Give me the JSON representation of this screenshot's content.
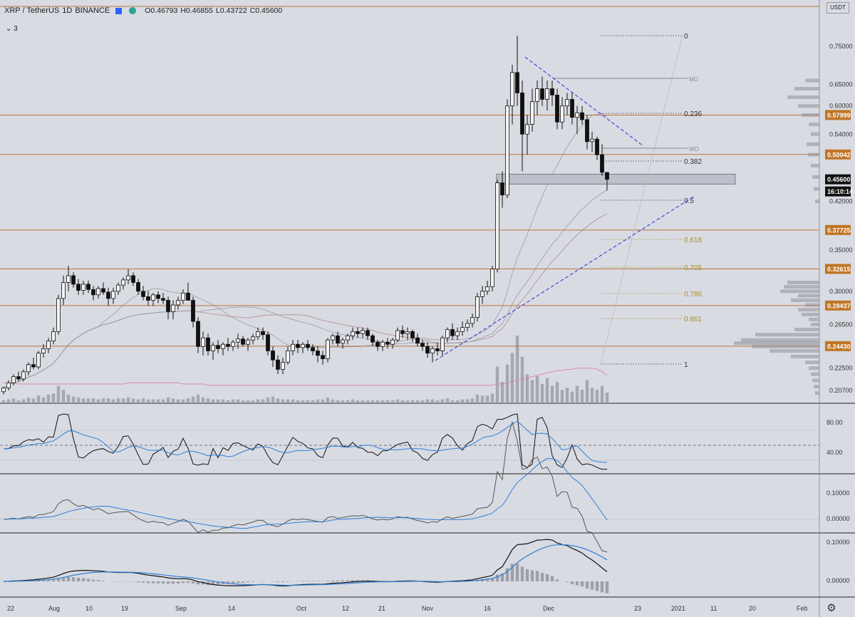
{
  "header": {
    "symbol": "XRP / TetherUS",
    "interval": "1D",
    "exchange": "BINANCE",
    "open_label": "O0.46793",
    "high_label": "H0.46855",
    "low_label": "L0.43722",
    "close_label": "C0.45600"
  },
  "indicators_toggle": "⌄ 3",
  "currency_label": "USDT",
  "colors": {
    "background": "#d9dbe3",
    "level_line": "#b7763a",
    "level_badge": "#c07525",
    "trendline": "#3b3bd4",
    "ma_pink": "#d88aa8",
    "ma_brown": "#b08a88",
    "ma_gray": "#9a9aa2",
    "osc_black": "#111111",
    "osc_blue": "#2f7fd8",
    "volume": "#9e9ea6"
  },
  "chart_data": {
    "type": "candlestick",
    "title": "XRP / TetherUS 1D BINANCE",
    "ohlc_last": {
      "open": 0.46793,
      "high": 0.46855,
      "low": 0.43722,
      "close": 0.456
    },
    "y_ticks": [
      "0.75000",
      "0.65000",
      "0.60000",
      "0.54000",
      "0.50042",
      "0.45600",
      "0.42000",
      "0.37725",
      "0.35000",
      "0.32615",
      "0.30000",
      "0.28437",
      "0.26500",
      "0.24430",
      "0.22500",
      "0.20700"
    ],
    "x_ticks": [
      "22",
      "Aug",
      "10",
      "19",
      "Sep",
      "14",
      "Oct",
      "12",
      "21",
      "Nov",
      "16",
      "Dec",
      "23",
      "2021",
      "11",
      "20",
      "Feb"
    ],
    "horizontal_levels": [
      "0.57999",
      "0.50042",
      "0.37725",
      "0.32615",
      "0.28437",
      "0.24430"
    ],
    "price_badges": [
      {
        "value": "0.57999",
        "kind": "level"
      },
      {
        "value": "0.50042",
        "kind": "level"
      },
      {
        "value": "0.45600",
        "kind": "last"
      },
      {
        "value": "16:10:14",
        "kind": "countdown"
      },
      {
        "value": "0.37725",
        "kind": "level"
      },
      {
        "value": "0.32615",
        "kind": "level"
      },
      {
        "value": "0.28437",
        "kind": "level"
      },
      {
        "value": "0.24430",
        "kind": "level"
      }
    ],
    "fibonacci": {
      "levels": [
        "0",
        "0.236",
        "0.382",
        "0.5",
        "0.618",
        "0.705",
        "0.786",
        "0.861",
        "1"
      ],
      "high": 0.78,
      "low": 0.23
    },
    "zone": {
      "from": 0.448,
      "to": 0.465
    },
    "weekly_open_labels": [
      "MO",
      "WO"
    ],
    "rsi_ticks": [
      "80.00",
      "40.00"
    ],
    "osc2_ticks": [
      "0.10000",
      "0.00000"
    ],
    "osc3_ticks": [
      "0.10000",
      "0.00000"
    ],
    "candles": [
      [
        0.206,
        0.21,
        0.204,
        0.209
      ],
      [
        0.209,
        0.215,
        0.207,
        0.213
      ],
      [
        0.213,
        0.22,
        0.211,
        0.218
      ],
      [
        0.218,
        0.222,
        0.214,
        0.216
      ],
      [
        0.216,
        0.224,
        0.214,
        0.222
      ],
      [
        0.222,
        0.23,
        0.219,
        0.228
      ],
      [
        0.228,
        0.234,
        0.224,
        0.226
      ],
      [
        0.226,
        0.24,
        0.224,
        0.238
      ],
      [
        0.238,
        0.246,
        0.234,
        0.242
      ],
      [
        0.242,
        0.252,
        0.238,
        0.249
      ],
      [
        0.249,
        0.262,
        0.246,
        0.258
      ],
      [
        0.258,
        0.296,
        0.255,
        0.292
      ],
      [
        0.292,
        0.318,
        0.285,
        0.31
      ],
      [
        0.31,
        0.33,
        0.3,
        0.318
      ],
      [
        0.318,
        0.322,
        0.304,
        0.308
      ],
      [
        0.308,
        0.314,
        0.296,
        0.301
      ],
      [
        0.301,
        0.312,
        0.296,
        0.308
      ],
      [
        0.308,
        0.312,
        0.298,
        0.302
      ],
      [
        0.302,
        0.306,
        0.29,
        0.296
      ],
      [
        0.296,
        0.306,
        0.292,
        0.303
      ],
      [
        0.303,
        0.31,
        0.296,
        0.299
      ],
      [
        0.299,
        0.304,
        0.284,
        0.292
      ],
      [
        0.292,
        0.304,
        0.286,
        0.3
      ],
      [
        0.3,
        0.31,
        0.296,
        0.307
      ],
      [
        0.307,
        0.316,
        0.302,
        0.313
      ],
      [
        0.313,
        0.326,
        0.308,
        0.318
      ],
      [
        0.318,
        0.322,
        0.306,
        0.31
      ],
      [
        0.31,
        0.314,
        0.296,
        0.3
      ],
      [
        0.3,
        0.306,
        0.29,
        0.294
      ],
      [
        0.294,
        0.3,
        0.284,
        0.29
      ],
      [
        0.29,
        0.298,
        0.284,
        0.296
      ],
      [
        0.296,
        0.3,
        0.287,
        0.292
      ],
      [
        0.292,
        0.298,
        0.286,
        0.29
      ],
      [
        0.29,
        0.294,
        0.27,
        0.278
      ],
      [
        0.278,
        0.29,
        0.27,
        0.285
      ],
      [
        0.285,
        0.294,
        0.28,
        0.29
      ],
      [
        0.29,
        0.302,
        0.286,
        0.298
      ],
      [
        0.298,
        0.31,
        0.294,
        0.29
      ],
      [
        0.29,
        0.294,
        0.262,
        0.268
      ],
      [
        0.268,
        0.272,
        0.238,
        0.244
      ],
      [
        0.244,
        0.258,
        0.236,
        0.252
      ],
      [
        0.252,
        0.256,
        0.236,
        0.24
      ],
      [
        0.24,
        0.248,
        0.232,
        0.245
      ],
      [
        0.245,
        0.25,
        0.238,
        0.242
      ],
      [
        0.242,
        0.248,
        0.236,
        0.246
      ],
      [
        0.246,
        0.252,
        0.24,
        0.244
      ],
      [
        0.244,
        0.25,
        0.24,
        0.248
      ],
      [
        0.248,
        0.256,
        0.242,
        0.251
      ],
      [
        0.251,
        0.254,
        0.244,
        0.246
      ],
      [
        0.246,
        0.252,
        0.24,
        0.25
      ],
      [
        0.25,
        0.256,
        0.246,
        0.253
      ],
      [
        0.253,
        0.262,
        0.25,
        0.258
      ],
      [
        0.258,
        0.262,
        0.25,
        0.255
      ],
      [
        0.255,
        0.258,
        0.236,
        0.24
      ],
      [
        0.24,
        0.244,
        0.226,
        0.232
      ],
      [
        0.232,
        0.236,
        0.22,
        0.224
      ],
      [
        0.224,
        0.234,
        0.22,
        0.23
      ],
      [
        0.23,
        0.244,
        0.228,
        0.24
      ],
      [
        0.24,
        0.25,
        0.236,
        0.246
      ],
      [
        0.246,
        0.25,
        0.238,
        0.243
      ],
      [
        0.243,
        0.248,
        0.238,
        0.246
      ],
      [
        0.246,
        0.25,
        0.24,
        0.243
      ],
      [
        0.243,
        0.246,
        0.236,
        0.24
      ],
      [
        0.24,
        0.244,
        0.23,
        0.236
      ],
      [
        0.236,
        0.24,
        0.228,
        0.233
      ],
      [
        0.233,
        0.252,
        0.23,
        0.25
      ],
      [
        0.25,
        0.256,
        0.246,
        0.254
      ],
      [
        0.254,
        0.258,
        0.244,
        0.247
      ],
      [
        0.247,
        0.252,
        0.242,
        0.25
      ],
      [
        0.25,
        0.256,
        0.246,
        0.254
      ],
      [
        0.254,
        0.262,
        0.25,
        0.258
      ],
      [
        0.258,
        0.262,
        0.252,
        0.256
      ],
      [
        0.256,
        0.262,
        0.252,
        0.259
      ],
      [
        0.259,
        0.262,
        0.25,
        0.254
      ],
      [
        0.254,
        0.256,
        0.244,
        0.248
      ],
      [
        0.248,
        0.25,
        0.24,
        0.244
      ],
      [
        0.244,
        0.25,
        0.24,
        0.248
      ],
      [
        0.248,
        0.252,
        0.242,
        0.246
      ],
      [
        0.246,
        0.252,
        0.242,
        0.25
      ],
      [
        0.25,
        0.262,
        0.248,
        0.259
      ],
      [
        0.259,
        0.264,
        0.252,
        0.256
      ],
      [
        0.256,
        0.262,
        0.25,
        0.258
      ],
      [
        0.258,
        0.26,
        0.248,
        0.252
      ],
      [
        0.252,
        0.256,
        0.244,
        0.247
      ],
      [
        0.247,
        0.25,
        0.24,
        0.244
      ],
      [
        0.244,
        0.248,
        0.234,
        0.238
      ],
      [
        0.238,
        0.244,
        0.23,
        0.242
      ],
      [
        0.242,
        0.248,
        0.236,
        0.24
      ],
      [
        0.24,
        0.254,
        0.236,
        0.252
      ],
      [
        0.252,
        0.262,
        0.248,
        0.26
      ],
      [
        0.26,
        0.266,
        0.25,
        0.254
      ],
      [
        0.254,
        0.262,
        0.25,
        0.258
      ],
      [
        0.258,
        0.268,
        0.254,
        0.262
      ],
      [
        0.262,
        0.27,
        0.258,
        0.266
      ],
      [
        0.266,
        0.276,
        0.262,
        0.272
      ],
      [
        0.272,
        0.298,
        0.268,
        0.294
      ],
      [
        0.294,
        0.306,
        0.286,
        0.3
      ],
      [
        0.3,
        0.312,
        0.296,
        0.305
      ],
      [
        0.305,
        0.33,
        0.3,
        0.326
      ],
      [
        0.326,
        0.455,
        0.322,
        0.45
      ],
      [
        0.45,
        0.47,
        0.41,
        0.43
      ],
      [
        0.43,
        0.615,
        0.425,
        0.6
      ],
      [
        0.6,
        0.7,
        0.56,
        0.68
      ],
      [
        0.68,
        0.78,
        0.6,
        0.63
      ],
      [
        0.63,
        0.66,
        0.47,
        0.54
      ],
      [
        0.54,
        0.58,
        0.5,
        0.56
      ],
      [
        0.56,
        0.64,
        0.545,
        0.61
      ],
      [
        0.61,
        0.66,
        0.58,
        0.64
      ],
      [
        0.64,
        0.67,
        0.6,
        0.615
      ],
      [
        0.615,
        0.66,
        0.59,
        0.64
      ],
      [
        0.64,
        0.66,
        0.6,
        0.625
      ],
      [
        0.625,
        0.64,
        0.55,
        0.565
      ],
      [
        0.565,
        0.62,
        0.55,
        0.6
      ],
      [
        0.6,
        0.63,
        0.58,
        0.615
      ],
      [
        0.615,
        0.63,
        0.56,
        0.575
      ],
      [
        0.575,
        0.6,
        0.54,
        0.585
      ],
      [
        0.585,
        0.6,
        0.56,
        0.57
      ],
      [
        0.57,
        0.58,
        0.51,
        0.525
      ],
      [
        0.525,
        0.545,
        0.505,
        0.53
      ],
      [
        0.53,
        0.535,
        0.49,
        0.5
      ],
      [
        0.5,
        0.52,
        0.462,
        0.468
      ],
      [
        0.46793,
        0.46855,
        0.43722,
        0.456
      ]
    ],
    "volume": [
      3,
      4,
      5,
      3,
      4,
      6,
      5,
      8,
      6,
      9,
      10,
      18,
      14,
      9,
      7,
      6,
      5,
      5,
      5,
      4,
      5,
      5,
      4,
      5,
      5,
      6,
      5,
      4,
      5,
      4,
      4,
      4,
      4,
      6,
      5,
      4,
      4,
      5,
      7,
      9,
      6,
      5,
      4,
      4,
      4,
      3,
      4,
      4,
      3,
      3,
      3,
      4,
      4,
      6,
      7,
      5,
      4,
      4,
      4,
      3,
      3,
      3,
      3,
      4,
      4,
      6,
      4,
      3,
      3,
      3,
      4,
      3,
      3,
      3,
      3,
      3,
      3,
      3,
      3,
      4,
      3,
      3,
      3,
      3,
      3,
      4,
      4,
      3,
      4,
      5,
      3,
      3,
      4,
      4,
      5,
      9,
      8,
      8,
      10,
      38,
      22,
      40,
      52,
      70,
      48,
      30,
      24,
      28,
      20,
      26,
      18,
      22,
      14,
      16,
      12,
      18,
      14,
      24,
      16,
      14,
      18,
      11
    ],
    "ma_pink": [
      0.213,
      0.213,
      0.213,
      0.212,
      0.212,
      0.212,
      0.212,
      0.212,
      0.212,
      0.212,
      0.212,
      0.212,
      0.212,
      0.212,
      0.212,
      0.212,
      0.212,
      0.212,
      0.212,
      0.212,
      0.212,
      0.212,
      0.212,
      0.212,
      0.212,
      0.213,
      0.213,
      0.213,
      0.213,
      0.213,
      0.213,
      0.213,
      0.213,
      0.213,
      0.213,
      0.213,
      0.212,
      0.212,
      0.212,
      0.212,
      0.212,
      0.211,
      0.211,
      0.211,
      0.211,
      0.211,
      0.211,
      0.211,
      0.211,
      0.211,
      0.211,
      0.211,
      0.211,
      0.211,
      0.211,
      0.211,
      0.211,
      0.211,
      0.211,
      0.211,
      0.211,
      0.211,
      0.211,
      0.211,
      0.211,
      0.211,
      0.211,
      0.211,
      0.211,
      0.211,
      0.211,
      0.211,
      0.211,
      0.211,
      0.211,
      0.211,
      0.211,
      0.211,
      0.211,
      0.211,
      0.211,
      0.211,
      0.211,
      0.211,
      0.211,
      0.211,
      0.211,
      0.211,
      0.211,
      0.211,
      0.211,
      0.211,
      0.211,
      0.211,
      0.211,
      0.211,
      0.211,
      0.211,
      0.211,
      0.212,
      0.212,
      0.213,
      0.214,
      0.215,
      0.216,
      0.217,
      0.218,
      0.219,
      0.22,
      0.221,
      0.222,
      0.223,
      0.223,
      0.224,
      0.224,
      0.225,
      0.225,
      0.225,
      0.225,
      0.224,
      0.222,
      0.219
    ]
  }
}
